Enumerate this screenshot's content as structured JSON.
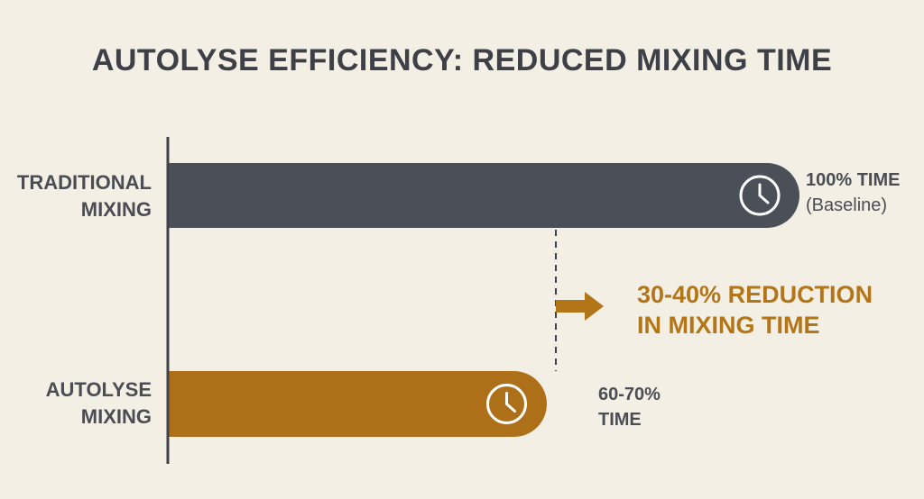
{
  "chart_data": {
    "type": "bar",
    "orientation": "horizontal",
    "title": "AUTOLYSE EFFICIENCY: REDUCED MIXING TIME",
    "categories": [
      "TRADITIONAL MIXING",
      "AUTOLYSE MIXING"
    ],
    "category_lines": [
      [
        "TRADITIONAL",
        "MIXING"
      ],
      [
        "AUTOLYSE",
        "MIXING"
      ]
    ],
    "values": [
      100,
      60
    ],
    "unit": "% time",
    "value_labels": [
      {
        "main": "100% TIME",
        "sub": "(Baseline)"
      },
      {
        "main": "60-70%",
        "sub": "TIME"
      }
    ],
    "annotation": [
      "30-40% REDUCTION",
      "IN MIXING TIME"
    ],
    "xlim": [
      0,
      100
    ],
    "grid": false,
    "legend": "none",
    "bar_icons": [
      "clock-icon",
      "clock-icon"
    ],
    "colors": {
      "background": "#f4efe5",
      "traditional": "#4b4f57",
      "autolyse": "#ad7018",
      "accent": "#b27619",
      "text": "#3d4047",
      "axis": "#3f4248"
    }
  }
}
